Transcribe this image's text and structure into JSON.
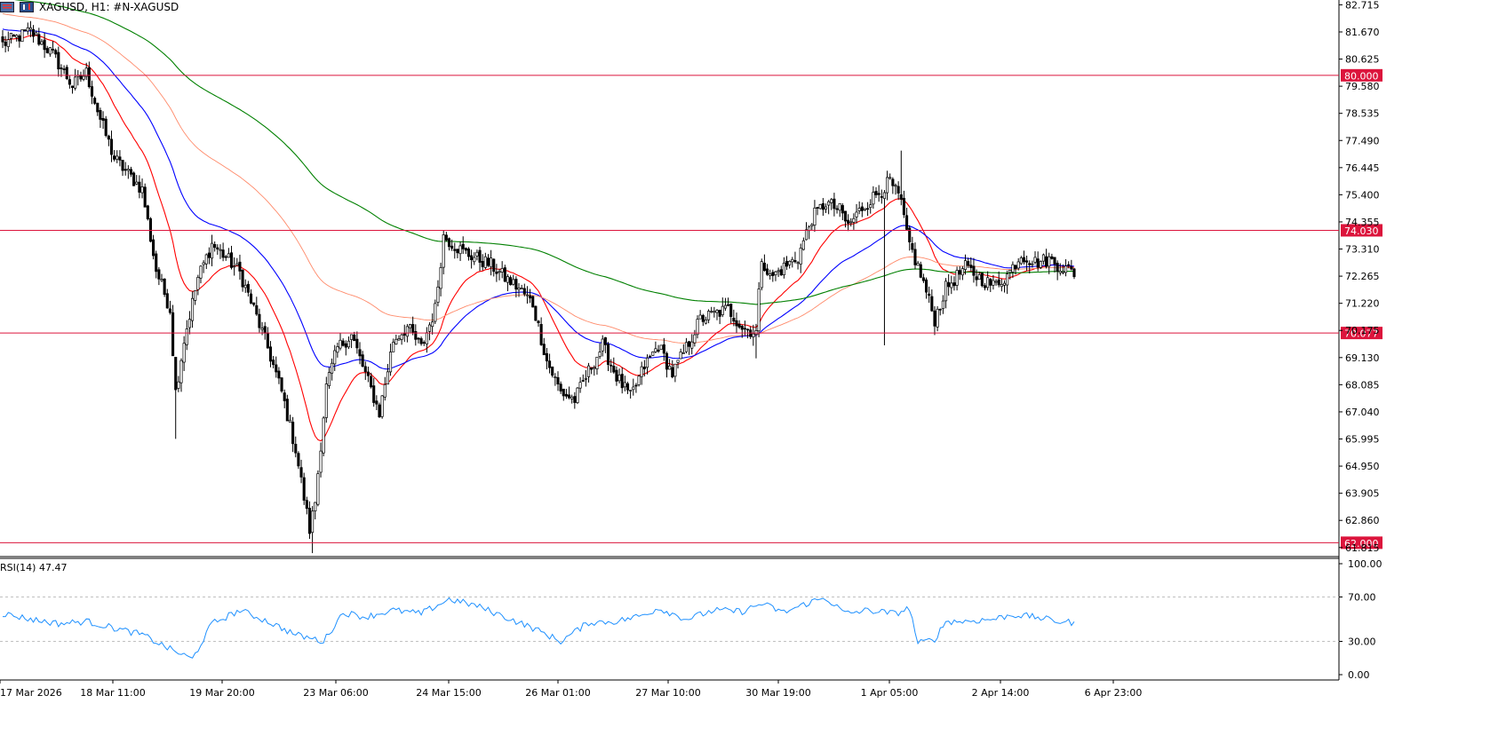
{
  "header": {
    "symbol_line": "XAGUSD, H1:  #N-XAGUSD",
    "icons": [
      "chart-window-icon",
      "candlestick-icon"
    ]
  },
  "colors": {
    "bull_candle": "#000000",
    "bear_candle": "#000000",
    "ma_fast": "#ff0000",
    "ma_mid": "#0000ff",
    "ma_slow_light": "#ff8a6a",
    "ma_long": "#008000",
    "level_line": "#dc143c",
    "rsi_line": "#1e90ff",
    "grid_dash": "#c0c0c0",
    "axis": "#000000"
  },
  "chart_data": [
    {
      "type": "candlestick",
      "title": "XAGUSD, H1:  #N-XAGUSD",
      "symbol": "XAGUSD",
      "timeframe": "H1",
      "ylim": [
        61.5,
        82.9
      ],
      "y_ticks": [
        "82.715",
        "81.670",
        "80.625",
        "79.580",
        "78.535",
        "77.490",
        "76.445",
        "75.400",
        "74.355",
        "73.310",
        "72.265",
        "71.220",
        "70.175",
        "69.130",
        "68.085",
        "67.040",
        "65.995",
        "64.950",
        "63.905",
        "62.860",
        "61.815"
      ],
      "x_tick_labels": [
        "17 Mar 2026",
        "18 Mar 11:00",
        "19 Mar 20:00",
        "23 Mar 06:00",
        "24 Mar 15:00",
        "26 Mar 01:00",
        "27 Mar 10:00",
        "30 Mar 19:00",
        "1 Apr 05:00",
        "2 Apr 14:00",
        "6 Apr 23:00"
      ],
      "horizontal_levels": [
        {
          "value": 80.0,
          "label": "80.000"
        },
        {
          "value": 74.03,
          "label": "74.030"
        },
        {
          "value": 70.077,
          "label": "70.077"
        },
        {
          "value": 62.0,
          "label": "62.000"
        }
      ],
      "price_anchors": [
        [
          0,
          81.2
        ],
        [
          10,
          81.7
        ],
        [
          18,
          80.8
        ],
        [
          25,
          79.6
        ],
        [
          30,
          80.1
        ],
        [
          35,
          78.3
        ],
        [
          40,
          76.8
        ],
        [
          50,
          75.6
        ],
        [
          55,
          72.5
        ],
        [
          60,
          71.0
        ],
        [
          62,
          67.8
        ],
        [
          65,
          69.8
        ],
        [
          70,
          72.2
        ],
        [
          75,
          73.5
        ],
        [
          80,
          73.0
        ],
        [
          85,
          72.4
        ],
        [
          90,
          71.0
        ],
        [
          95,
          69.5
        ],
        [
          100,
          67.8
        ],
        [
          105,
          65.6
        ],
        [
          110,
          62.5
        ],
        [
          112,
          63.6
        ],
        [
          116,
          68.0
        ],
        [
          120,
          69.5
        ],
        [
          125,
          70.0
        ],
        [
          130,
          68.5
        ],
        [
          135,
          67.0
        ],
        [
          140,
          69.8
        ],
        [
          145,
          70.3
        ],
        [
          150,
          69.5
        ],
        [
          155,
          71.0
        ],
        [
          158,
          73.8
        ],
        [
          165,
          73.2
        ],
        [
          175,
          72.7
        ],
        [
          180,
          72.2
        ],
        [
          185,
          71.8
        ],
        [
          190,
          71.2
        ],
        [
          195,
          69.0
        ],
        [
          200,
          67.8
        ],
        [
          205,
          67.5
        ],
        [
          210,
          68.6
        ],
        [
          215,
          69.6
        ],
        [
          220,
          68.4
        ],
        [
          225,
          67.6
        ],
        [
          230,
          68.8
        ],
        [
          235,
          69.6
        ],
        [
          240,
          68.5
        ],
        [
          245,
          69.5
        ],
        [
          250,
          70.6
        ],
        [
          255,
          70.8
        ],
        [
          260,
          71.0
        ],
        [
          265,
          70.3
        ],
        [
          270,
          70.1
        ],
        [
          272,
          73.0
        ],
        [
          275,
          72.2
        ],
        [
          280,
          72.6
        ],
        [
          285,
          73.0
        ],
        [
          290,
          74.5
        ],
        [
          295,
          75.1
        ],
        [
          300,
          74.8
        ],
        [
          303,
          74.2
        ],
        [
          308,
          74.9
        ],
        [
          313,
          75.4
        ],
        [
          318,
          75.9
        ],
        [
          322,
          75.1
        ],
        [
          324,
          73.8
        ],
        [
          330,
          72.0
        ],
        [
          334,
          70.6
        ],
        [
          338,
          71.8
        ],
        [
          345,
          72.6
        ],
        [
          350,
          72.2
        ],
        [
          355,
          71.9
        ],
        [
          360,
          72.3
        ],
        [
          365,
          73.1
        ],
        [
          370,
          72.8
        ],
        [
          375,
          72.9
        ],
        [
          380,
          72.6
        ],
        [
          384,
          72.4
        ]
      ],
      "moving_averages": [
        {
          "color": "#ff0000",
          "period": 20
        },
        {
          "color": "#0000ff",
          "period": 50
        },
        {
          "color": "#ff8a6a",
          "period": 100
        },
        {
          "color": "#008000",
          "period": 200
        }
      ]
    },
    {
      "type": "line",
      "title": "RSI(14) 47.47",
      "indicator": "RSI(14)",
      "current_value": 47.47,
      "ylim": [
        0,
        100
      ],
      "y_ticks": [
        "100.00",
        "70.00",
        "30.00",
        "0.00"
      ],
      "dashed_levels": [
        70,
        30
      ],
      "anchors": [
        [
          0,
          55
        ],
        [
          10,
          50
        ],
        [
          20,
          46
        ],
        [
          30,
          48
        ],
        [
          40,
          42
        ],
        [
          50,
          36
        ],
        [
          60,
          23
        ],
        [
          68,
          14
        ],
        [
          75,
          46
        ],
        [
          85,
          58
        ],
        [
          95,
          48
        ],
        [
          105,
          36
        ],
        [
          115,
          30
        ],
        [
          122,
          56
        ],
        [
          130,
          52
        ],
        [
          140,
          58
        ],
        [
          150,
          55
        ],
        [
          160,
          68
        ],
        [
          170,
          62
        ],
        [
          180,
          52
        ],
        [
          190,
          42
        ],
        [
          200,
          30
        ],
        [
          210,
          47
        ],
        [
          220,
          48
        ],
        [
          230,
          54
        ],
        [
          235,
          60
        ],
        [
          245,
          50
        ],
        [
          255,
          58
        ],
        [
          265,
          57
        ],
        [
          272,
          64
        ],
        [
          280,
          56
        ],
        [
          290,
          66
        ],
        [
          295,
          69
        ],
        [
          302,
          55
        ],
        [
          310,
          58
        ],
        [
          320,
          55
        ],
        [
          325,
          60
        ],
        [
          328,
          28
        ],
        [
          334,
          32
        ],
        [
          338,
          48
        ],
        [
          345,
          48
        ],
        [
          355,
          50
        ],
        [
          362,
          54
        ],
        [
          370,
          52
        ],
        [
          378,
          48
        ],
        [
          384,
          47
        ]
      ]
    }
  ]
}
